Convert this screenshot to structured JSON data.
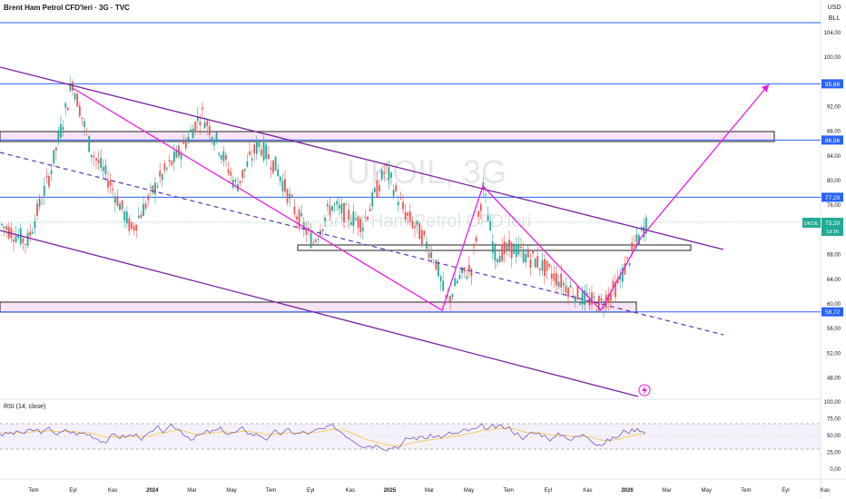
{
  "header": {
    "title": "Brent Ham Petrol CFD'leri · 3G · TVC",
    "currency": "USD",
    "unit": "BLL"
  },
  "watermark": {
    "symbol": "UKOIL, 3G",
    "name": "Brent Ham Petrol CFD'leri"
  },
  "price_axis": {
    "ticks": [
      "104,00",
      "100,00",
      "96,00",
      "92,00",
      "88,00",
      "84,00",
      "80,00",
      "76,00",
      "72,00",
      "68,00",
      "64,00",
      "60,00",
      "56,00",
      "52,00",
      "48,00"
    ],
    "hline_labels": [
      {
        "value": "95,68",
        "price": 95.68
      },
      {
        "value": "86,56",
        "price": 86.56
      },
      {
        "value": "77,29",
        "price": 77.29
      },
      {
        "value": "58,72",
        "price": 58.72
      }
    ],
    "current": {
      "symbol": "UKOIL",
      "value": "73,20",
      "countdown": "1d 2h",
      "price": 73.2
    }
  },
  "rsi": {
    "title": "RSI (14, close)",
    "ticks": [
      "100,00",
      "75,00",
      "50,00",
      "25,00",
      "0,00"
    ]
  },
  "time_axis": {
    "labels": [
      "Tem",
      "Eyl",
      "Kas",
      "2024",
      "Mar",
      "May",
      "Tem",
      "Eyl",
      "Kas",
      "2025",
      "Mar",
      "May",
      "Tem",
      "Eyl",
      "Kas",
      "2026",
      "Mar",
      "May",
      "Tem",
      "Eyl",
      "Kas"
    ]
  },
  "colors": {
    "up": "#26a69a",
    "down": "#ef5350",
    "hline": "#2962ff",
    "channel": "#7b1fa2",
    "pattern": "#e91ee0",
    "zone_fill": "#f8e4f4",
    "current_price": "#22ab94",
    "rsi_line": "#7e57c2",
    "rsi_ma": "#f4c542"
  },
  "icons": {
    "alert": "lightning-icon"
  }
}
